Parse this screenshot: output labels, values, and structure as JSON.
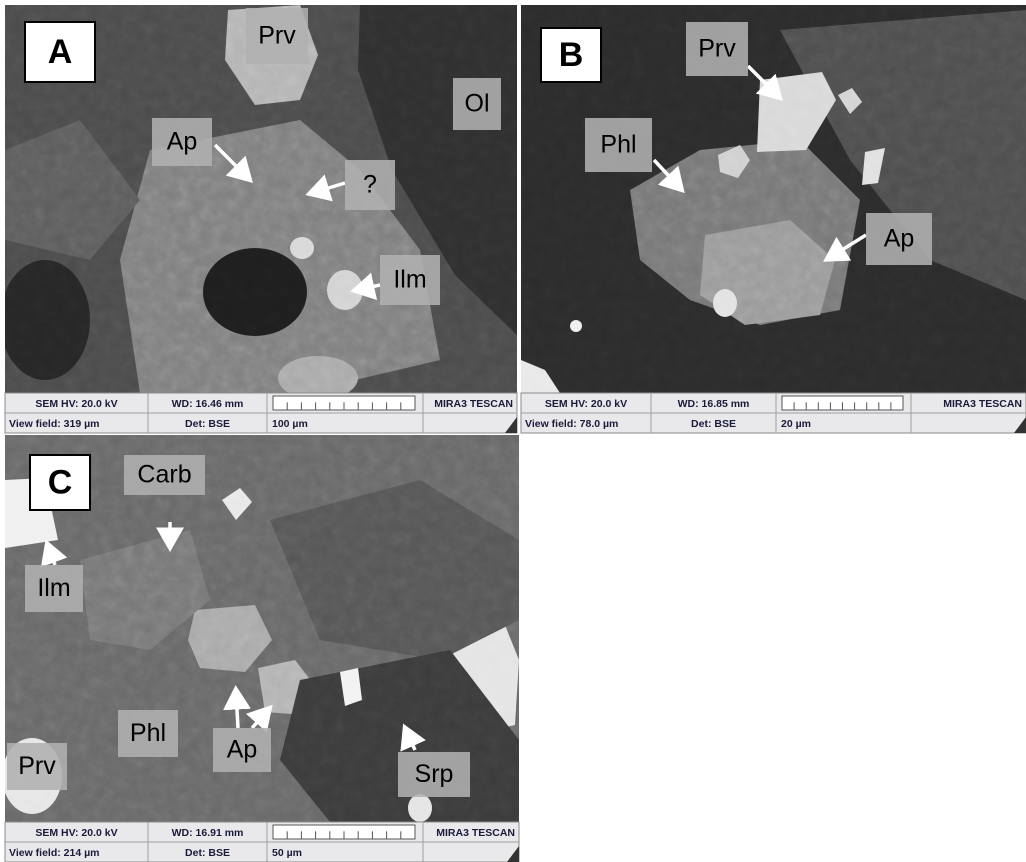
{
  "panels": [
    {
      "label": "A",
      "annotations": [
        "Prv",
        "Ol",
        "Ap",
        "?",
        "Ilm"
      ],
      "info": {
        "hv": "SEM HV: 20.0 kV",
        "wd": "WD: 16.46 mm",
        "brand": "MIRA3 TESCAN",
        "view_field": "View field: 319 µm",
        "detector": "Det: BSE",
        "scale": "100 µm"
      }
    },
    {
      "label": "B",
      "annotations": [
        "Prv",
        "Phl",
        "Ap"
      ],
      "info": {
        "hv": "SEM HV: 20.0 kV",
        "wd": "WD: 16.85 mm",
        "brand": "MIRA3 TESCAN",
        "view_field": "View field: 78.0 µm",
        "detector": "Det: BSE",
        "scale": "20 µm"
      }
    },
    {
      "label": "C",
      "annotations": [
        "Carb",
        "Ilm",
        "Phl",
        "Ap",
        "Prv",
        "Srp"
      ],
      "info": {
        "hv": "SEM HV: 20.0 kV",
        "wd": "WD: 16.91 mm",
        "brand": "MIRA3 TESCAN",
        "view_field": "View field: 214 µm",
        "detector": "Det: BSE",
        "scale": "50 µm"
      }
    }
  ]
}
